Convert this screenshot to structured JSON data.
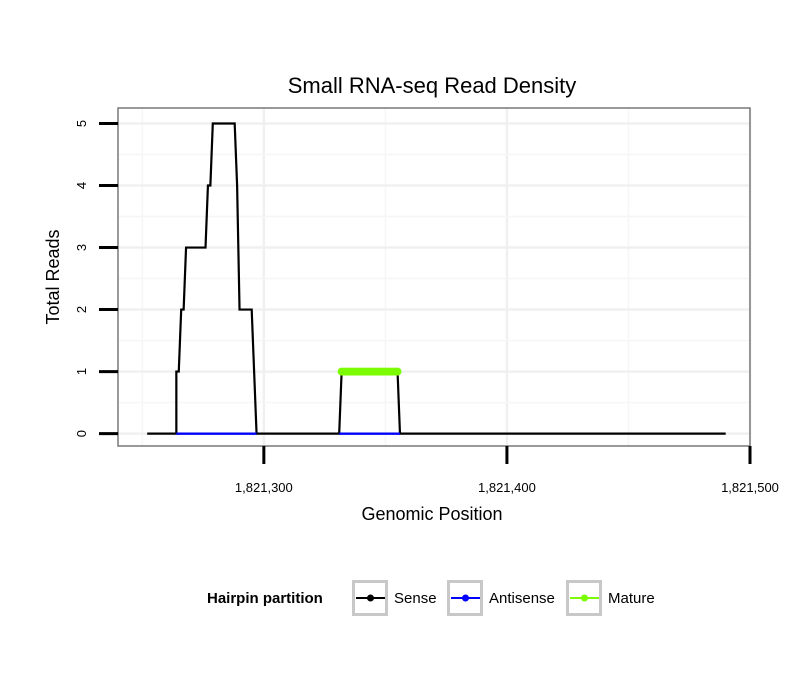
{
  "chart_data": {
    "type": "line",
    "title": "Small RNA-seq Read Density",
    "xlabel": "Genomic Position",
    "ylabel": "Total Reads",
    "xlim": [
      1821240,
      1821500
    ],
    "ylim": [
      -0.2,
      5.25
    ],
    "x_ticks": [
      1821300,
      1821400,
      1821500
    ],
    "x_tick_labels": [
      "1,821,300",
      "1,821,400",
      "1,821,500"
    ],
    "y_ticks": [
      0,
      1,
      2,
      3,
      4,
      5
    ],
    "y_tick_labels": [
      "0",
      "1",
      "2",
      "3",
      "4",
      "5"
    ],
    "grid": true,
    "legend": {
      "position": "bottom",
      "title": "Hairpin partition",
      "entries": [
        {
          "name": "Sense",
          "color": "#000000"
        },
        {
          "name": "Antisense",
          "color": "#0000ff"
        },
        {
          "name": "Mature",
          "color": "#7cfc00"
        }
      ]
    },
    "series": [
      {
        "name": "Sense",
        "color": "#000000",
        "points": [
          [
            1821252,
            0
          ],
          [
            1821264,
            0
          ],
          [
            1821264,
            1
          ],
          [
            1821265,
            1
          ],
          [
            1821266,
            2
          ],
          [
            1821267,
            2
          ],
          [
            1821268,
            3
          ],
          [
            1821276,
            3
          ],
          [
            1821277,
            4
          ],
          [
            1821278,
            4
          ],
          [
            1821279,
            5
          ],
          [
            1821288,
            5
          ],
          [
            1821289,
            4
          ],
          [
            1821290,
            2
          ],
          [
            1821295,
            2
          ],
          [
            1821297,
            0
          ],
          [
            1821331,
            0
          ],
          [
            1821332,
            1
          ],
          [
            1821355,
            1
          ],
          [
            1821356,
            0
          ],
          [
            1821490,
            0
          ]
        ]
      },
      {
        "name": "Antisense",
        "color": "#0000ff",
        "points": [
          [
            1821264,
            0
          ],
          [
            1821297,
            0
          ],
          [
            1821331,
            0
          ],
          [
            1821356,
            0
          ]
        ]
      },
      {
        "name": "Mature",
        "color": "#7cfc00",
        "points": [
          [
            1821332,
            1
          ],
          [
            1821333,
            1
          ],
          [
            1821334,
            1
          ],
          [
            1821335,
            1
          ],
          [
            1821336,
            1
          ],
          [
            1821337,
            1
          ],
          [
            1821338,
            1
          ],
          [
            1821339,
            1
          ],
          [
            1821340,
            1
          ],
          [
            1821341,
            1
          ],
          [
            1821342,
            1
          ],
          [
            1821343,
            1
          ],
          [
            1821344,
            1
          ],
          [
            1821345,
            1
          ],
          [
            1821346,
            1
          ],
          [
            1821347,
            1
          ],
          [
            1821348,
            1
          ],
          [
            1821349,
            1
          ],
          [
            1821350,
            1
          ],
          [
            1821351,
            1
          ],
          [
            1821352,
            1
          ],
          [
            1821353,
            1
          ],
          [
            1821354,
            1
          ],
          [
            1821355,
            1
          ]
        ]
      }
    ]
  }
}
